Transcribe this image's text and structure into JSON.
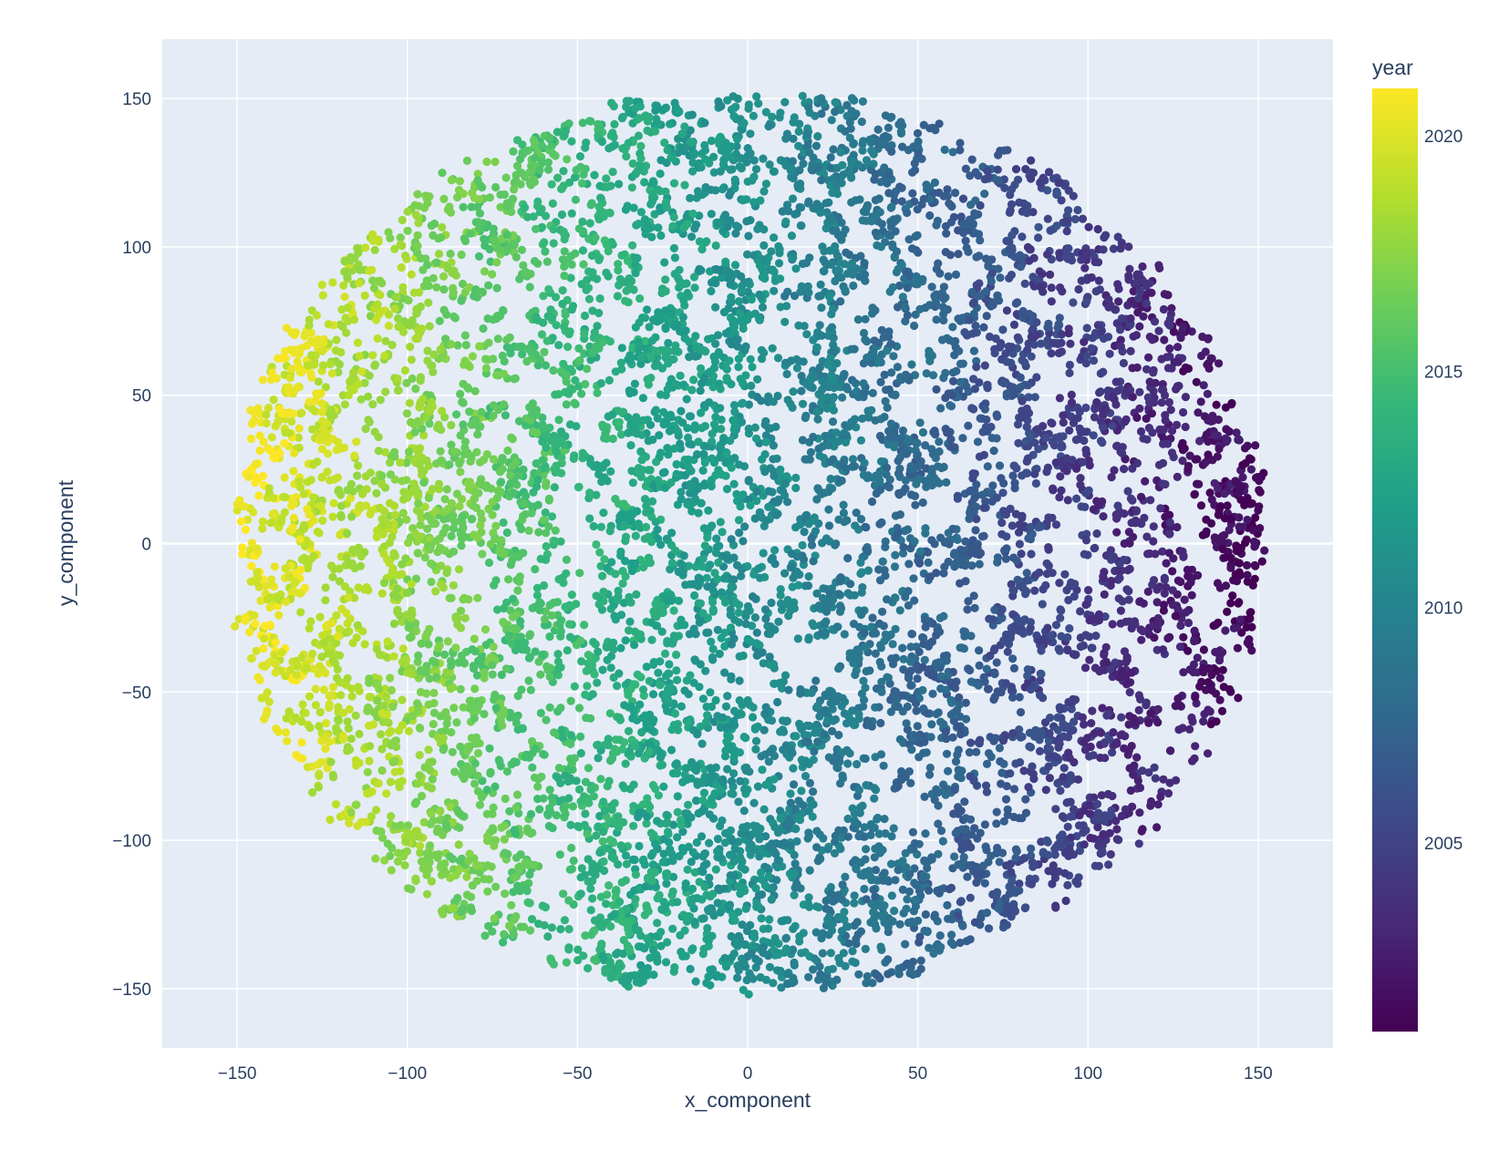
{
  "chart_data": {
    "type": "scatter",
    "title": "",
    "xlabel": "x_component",
    "ylabel": "y_component",
    "xlim": [
      -172,
      172
    ],
    "ylim": [
      -170,
      170
    ],
    "x_ticks": [
      -150,
      -100,
      -50,
      0,
      50,
      100,
      150
    ],
    "y_ticks": [
      -150,
      -100,
      -50,
      0,
      50,
      100,
      150
    ],
    "grid": true,
    "point_cloud": {
      "shape": "disc",
      "center": [
        0,
        0
      ],
      "radius_approx": 152,
      "description_trend": "year decreases from left (2021) to right (2001)"
    },
    "color_axis": {
      "title": "year",
      "range": [
        2001,
        2021
      ],
      "ticks": [
        2005,
        2010,
        2015,
        2020
      ],
      "colorscale": "Viridis",
      "colors": [
        "#440154",
        "#482878",
        "#3e4989",
        "#31688e",
        "#26828e",
        "#1f9e89",
        "#35b779",
        "#6ece58",
        "#b5de2b",
        "#fde725"
      ]
    },
    "colors": {
      "plot_bg": "#e5ecf6",
      "grid": "#ffffff",
      "text": "#2a3f5f"
    }
  }
}
